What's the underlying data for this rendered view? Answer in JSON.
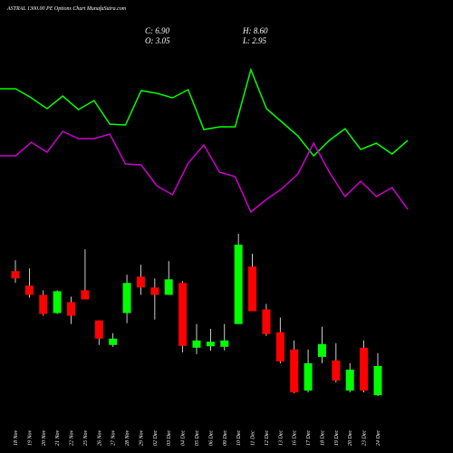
{
  "chart_data": {
    "type": "candlestick",
    "title": "ASTRAL 1300.00 PE Options Chart MunafaSutra.com",
    "summary": [
      "C: 6.90",
      "H: 8.60",
      "O: 3.05",
      "L: 2.95"
    ],
    "categories": [
      "18 Nov",
      "19 Nov",
      "20 Nov",
      "21 Nov",
      "22 Nov",
      "25 Nov",
      "26 Nov",
      "27 Nov",
      "28 Nov",
      "29 Nov",
      "02 Dec",
      "03 Dec",
      "04 Dec",
      "05 Dec",
      "06 Dec",
      "09 Dec",
      "10 Dec",
      "11 Dec",
      "12 Dec",
      "13 Dec",
      "16 Dec",
      "17 Dec",
      "18 Dec",
      "19 Dec",
      "20 Dec",
      "23 Dec",
      "24 Dec"
    ],
    "open": [
      19.41,
      17.49,
      16.28,
      13.88,
      15.32,
      16.88,
      12.91,
      9.67,
      13.88,
      18.69,
      17.25,
      16.28,
      17.85,
      9.31,
      9.5,
      9.43,
      12.43,
      20.01,
      14.36,
      11.35,
      9.07,
      3.65,
      8.1,
      7.62,
      3.65,
      9.31,
      3.05
    ],
    "close": [
      18.45,
      16.28,
      13.76,
      16.76,
      13.52,
      15.68,
      10.51,
      10.51,
      17.85,
      17.25,
      16.28,
      18.33,
      9.55,
      10.27,
      10.1,
      10.27,
      22.9,
      14.12,
      11.11,
      7.5,
      3.41,
      7.26,
      9.79,
      4.97,
      6.42,
      3.65,
      6.9
    ],
    "high": [
      20.85,
      19.77,
      16.88,
      16.88,
      16.04,
      22.3,
      12.91,
      11.23,
      18.93,
      20.25,
      18.45,
      20.73,
      18.09,
      12.43,
      11.8,
      12.43,
      24.34,
      21.7,
      15.08,
      13.28,
      10.27,
      9.07,
      12.07,
      9.91,
      7.26,
      10.27,
      8.6
    ],
    "low": [
      17.85,
      15.92,
      13.52,
      13.76,
      12.43,
      15.68,
      9.67,
      9.43,
      12.55,
      16.28,
      13.03,
      16.28,
      8.7,
      8.46,
      8.9,
      8.94,
      12.43,
      14.12,
      10.87,
      7.26,
      3.29,
      3.41,
      7.26,
      4.73,
      3.41,
      3.41,
      2.95
    ],
    "up_color": "#00ff00",
    "down_color": "#ff0000",
    "lines": [
      {
        "color": "#00ff00",
        "values": [
          152,
          152,
          142,
          130,
          144,
          129,
          139,
          113,
          112,
          150,
          147,
          142,
          151,
          107,
          110,
          110,
          173,
          130,
          115,
          100,
          78,
          95,
          108,
          85,
          92,
          80,
          95
        ]
      },
      {
        "color": "#cc00cc",
        "values": [
          78,
          78,
          93,
          82,
          105,
          97,
          97,
          102,
          69,
          68,
          45,
          35,
          70,
          90,
          60,
          55,
          16,
          30,
          42,
          58,
          92,
          60,
          33,
          50,
          33,
          43,
          19
        ]
      }
    ]
  }
}
